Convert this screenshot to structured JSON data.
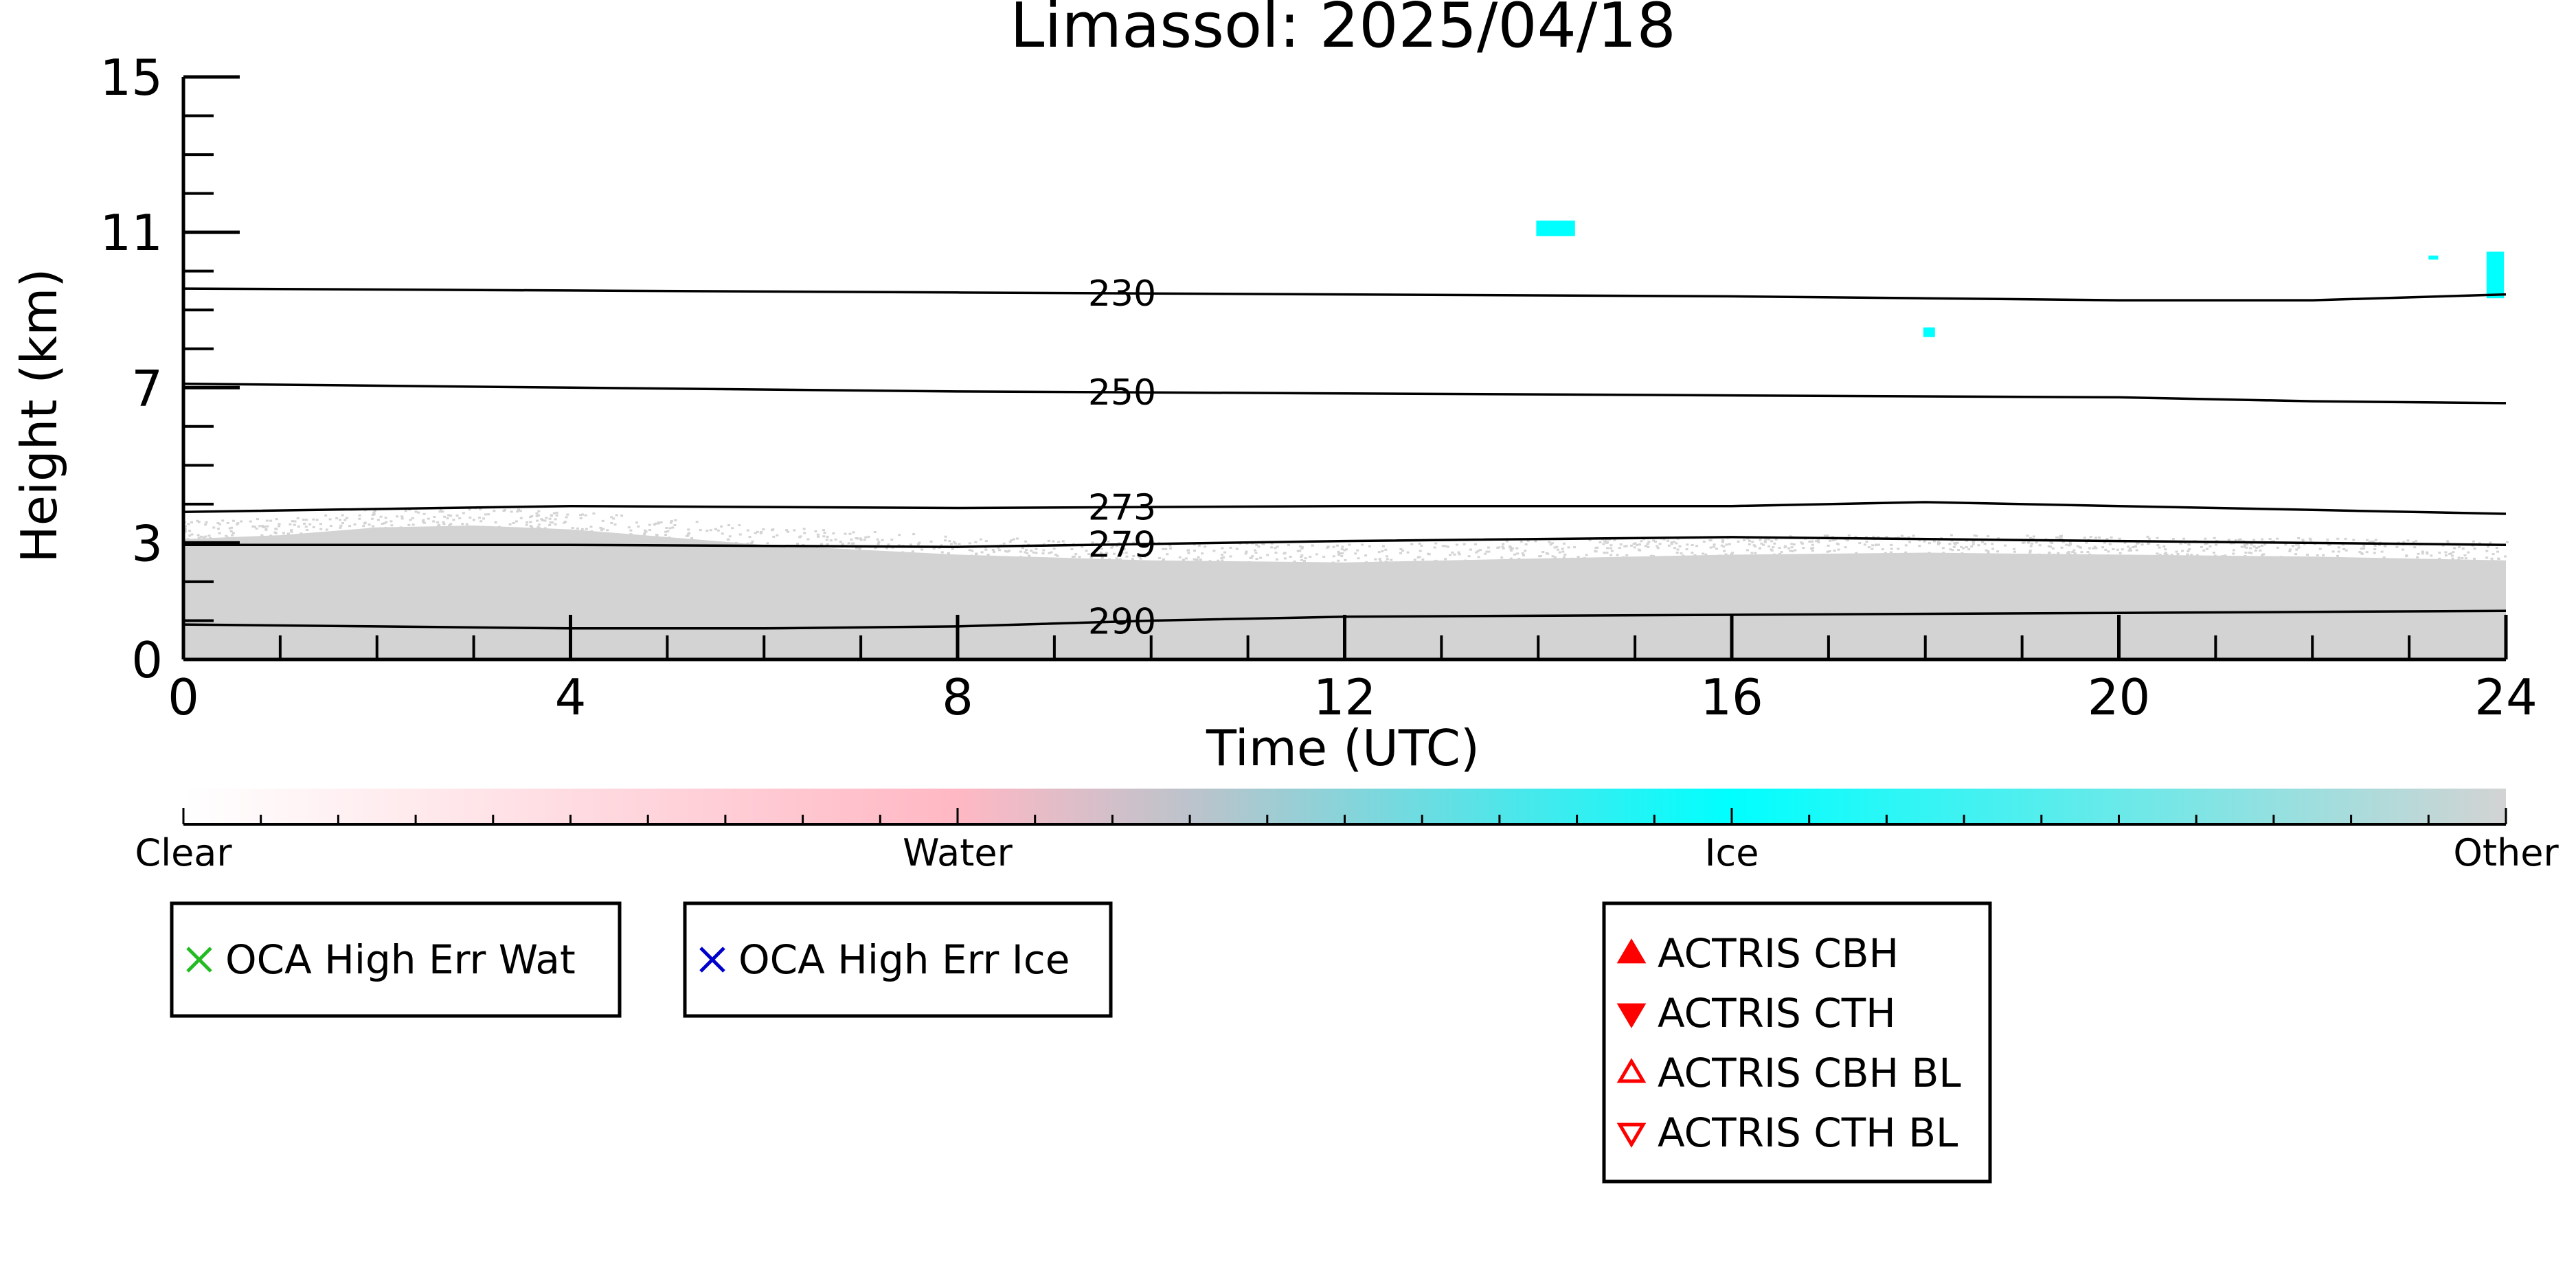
{
  "chart_data": {
    "type": "heatmap",
    "title": "Limassol: 2025/04/18",
    "xlabel": "Time (UTC)",
    "ylabel": "Height (km)",
    "xlim": [
      0,
      24
    ],
    "ylim": [
      0,
      15
    ],
    "x_ticks": [
      "0",
      "4",
      "8",
      "12",
      "16",
      "20",
      "24"
    ],
    "y_ticks": [
      "0",
      "3",
      "7",
      "11",
      "15"
    ],
    "x_tick_values": [
      0,
      4,
      8,
      12,
      16,
      20,
      24
    ],
    "y_tick_values": [
      0,
      3,
      7,
      11,
      15
    ],
    "grid": false,
    "contours": [
      {
        "label": "230",
        "label_x": 9.7,
        "points": [
          [
            0,
            9.55
          ],
          [
            4,
            9.5
          ],
          [
            8,
            9.45
          ],
          [
            12,
            9.4
          ],
          [
            16,
            9.35
          ],
          [
            18,
            9.3
          ],
          [
            20,
            9.25
          ],
          [
            22,
            9.25
          ],
          [
            24,
            9.4
          ]
        ]
      },
      {
        "label": "250",
        "label_x": 9.7,
        "points": [
          [
            0,
            7.1
          ],
          [
            4,
            7.0
          ],
          [
            8,
            6.9
          ],
          [
            12,
            6.85
          ],
          [
            16,
            6.8
          ],
          [
            20,
            6.75
          ],
          [
            22,
            6.65
          ],
          [
            24,
            6.6
          ]
        ]
      },
      {
        "label": "273",
        "label_x": 9.7,
        "points": [
          [
            0,
            3.8
          ],
          [
            4,
            3.95
          ],
          [
            8,
            3.9
          ],
          [
            12,
            3.95
          ],
          [
            16,
            3.95
          ],
          [
            18,
            4.05
          ],
          [
            20,
            3.95
          ],
          [
            22,
            3.85
          ],
          [
            24,
            3.75
          ]
        ]
      },
      {
        "label": "279",
        "label_x": 9.7,
        "points": [
          [
            0,
            2.95
          ],
          [
            4,
            2.95
          ],
          [
            8,
            2.9
          ],
          [
            12,
            3.05
          ],
          [
            16,
            3.15
          ],
          [
            20,
            3.05
          ],
          [
            24,
            2.95
          ]
        ]
      },
      {
        "label": "290",
        "label_x": 9.7,
        "points": [
          [
            0,
            0.9
          ],
          [
            2,
            0.85
          ],
          [
            4,
            0.8
          ],
          [
            6,
            0.8
          ],
          [
            8,
            0.85
          ],
          [
            10,
            1.0
          ],
          [
            12,
            1.1
          ],
          [
            16,
            1.15
          ],
          [
            20,
            1.2
          ],
          [
            24,
            1.25
          ]
        ]
      }
    ],
    "other_region": {
      "class": "Other",
      "top_profile": [
        [
          0,
          3.1
        ],
        [
          1,
          3.2
        ],
        [
          2,
          3.4
        ],
        [
          3,
          3.45
        ],
        [
          4,
          3.35
        ],
        [
          5,
          3.15
        ],
        [
          6,
          2.95
        ],
        [
          8,
          2.7
        ],
        [
          10,
          2.55
        ],
        [
          12,
          2.5
        ],
        [
          14,
          2.6
        ],
        [
          16,
          2.7
        ],
        [
          18,
          2.75
        ],
        [
          20,
          2.7
        ],
        [
          22,
          2.65
        ],
        [
          24,
          2.55
        ]
      ]
    },
    "ice_patches": [
      {
        "x": [
          13.98,
          14.38
        ],
        "y": [
          10.9,
          11.3
        ]
      },
      {
        "x": [
          17.98,
          18.1
        ],
        "y": [
          8.3,
          8.55
        ]
      },
      {
        "x": [
          23.2,
          23.3
        ],
        "y": [
          10.3,
          10.4
        ]
      },
      {
        "x": [
          23.8,
          23.98
        ],
        "y": [
          9.3,
          10.5
        ]
      }
    ],
    "colorbar": {
      "labels": [
        "Clear",
        "Water",
        "Ice",
        "Other"
      ],
      "colors": [
        "#ffffff",
        "#ffb8c4",
        "#00ffff",
        "#d3d3d3"
      ],
      "mid_color": "#b8c4cc"
    },
    "legends": [
      {
        "entries": [
          {
            "symbol": "x",
            "color": "#22bb22",
            "label": "OCA High Err Wat"
          }
        ]
      },
      {
        "entries": [
          {
            "symbol": "x",
            "color": "#0000cc",
            "label": "OCA High Err Ice"
          }
        ]
      },
      {
        "entries": [
          {
            "symbol": "triangle-up",
            "color": "#ff0000",
            "label": "ACTRIS CBH"
          },
          {
            "symbol": "triangle-down",
            "color": "#ff0000",
            "label": "ACTRIS CTH"
          },
          {
            "symbol": "triangle-up-open",
            "color": "#ff0000",
            "label": "ACTRIS CBH BL"
          },
          {
            "symbol": "triangle-down-open",
            "color": "#ff0000",
            "label": "ACTRIS CTH BL"
          }
        ]
      }
    ]
  }
}
